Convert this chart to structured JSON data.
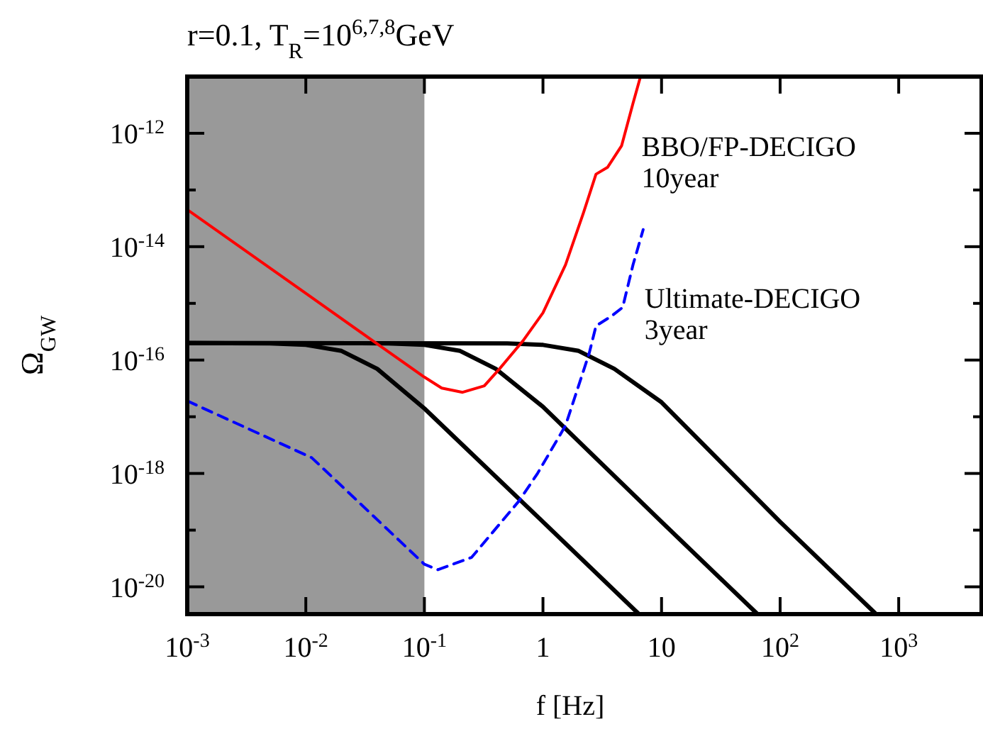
{
  "chart_data": {
    "type": "line",
    "title": "r=0.1, T$_{R}$=10$^{6,7,8}$GeV",
    "xlabel": "f [Hz]",
    "ylabel": "Ω$_{GW}$",
    "log": "xy",
    "xlim": [
      0.001,
      5000
    ],
    "ylim": [
      3.3e-21,
      1e-11
    ],
    "xticks": [
      {
        "value": 0.001,
        "label": "10$^{-3}$"
      },
      {
        "value": 0.01,
        "label": "10$^{-2}$"
      },
      {
        "value": 0.1,
        "label": "10$^{-1}$"
      },
      1,
      10,
      {
        "value": 100,
        "label": "10$^{2}$"
      },
      {
        "value": 1000,
        "label": "10$^{3}$"
      }
    ],
    "yticks": [
      {
        "value": 1e-20,
        "label": "10$^{-20}$"
      },
      {
        "value": 1e-19,
        "label": null
      },
      {
        "value": 1e-18,
        "label": "10$^{-18}$"
      },
      {
        "value": 1e-17,
        "label": null
      },
      {
        "value": 1e-16,
        "label": "10$^{-16}$"
      },
      {
        "value": 1e-15,
        "label": null
      },
      {
        "value": 1e-14,
        "label": "10$^{-14}$"
      },
      {
        "value": 1e-13,
        "label": null
      },
      {
        "value": 1e-12,
        "label": "10$^{-12}$"
      }
    ],
    "bands": [
      {
        "axis": "x",
        "from": 0.001,
        "to": 0.1,
        "color": "#999999"
      }
    ],
    "series": [
      {
        "color": "#000000",
        "x": [
          0.001,
          0.005,
          0.01,
          0.02,
          0.04,
          0.1,
          1,
          6.4
        ],
        "values": [
          2e-16,
          1.97e-16,
          1.85e-16,
          1.45e-16,
          7e-17,
          1.4e-17,
          1.4e-19,
          3.35e-21
        ]
      },
      {
        "color": "#000000",
        "x": [
          0.001,
          0.05,
          0.1,
          0.2,
          0.4,
          1,
          10,
          64
        ],
        "values": [
          2e-16,
          1.97e-16,
          1.85e-16,
          1.45e-16,
          7e-17,
          1.5e-17,
          1.4e-19,
          3.35e-21
        ]
      },
      {
        "color": "#000000",
        "x": [
          0.001,
          0.5,
          1,
          2,
          4,
          10,
          100,
          640
        ],
        "values": [
          2e-16,
          1.97e-16,
          1.85e-16,
          1.45e-16,
          7e-17,
          1.8e-17,
          1.4e-19,
          3.35e-21
        ]
      },
      {
        "name": "BBO/FP-DECIGO\n10year",
        "color": "#ff0000",
        "x": [
          0.001,
          0.01,
          0.0366,
          0.1,
          0.14,
          0.21,
          0.32,
          0.43,
          0.68,
          1,
          1.55,
          2.2,
          2.8,
          3.5,
          4.6,
          5.75,
          6.6
        ],
        "values": [
          4.5e-14,
          1.5e-15,
          2.2e-16,
          5e-17,
          3.2e-17,
          2.7e-17,
          3.5e-17,
          7e-17,
          2.2e-16,
          6.8e-16,
          4.8e-15,
          4e-14,
          1.9e-13,
          2.5e-13,
          6e-13,
          3.4e-12,
          9.5e-12
        ]
      },
      {
        "name": "Ultimate-DECIGO\n3year",
        "color": "#0000ff",
        "line_style": "dashed",
        "x": [
          0.001,
          0.0112,
          0.1,
          0.13,
          0.25,
          0.63,
          0.9,
          1.55,
          2.45,
          2.8,
          3.8,
          4.7,
          5.75,
          7
        ],
        "values": [
          1.9e-17,
          1.9e-18,
          2.5e-20,
          2e-20,
          3.3e-20,
          3.3e-19,
          1e-18,
          7e-18,
          1.3e-16,
          4e-16,
          6e-16,
          8.5e-16,
          4.8e-15,
          2e-14
        ]
      }
    ]
  }
}
